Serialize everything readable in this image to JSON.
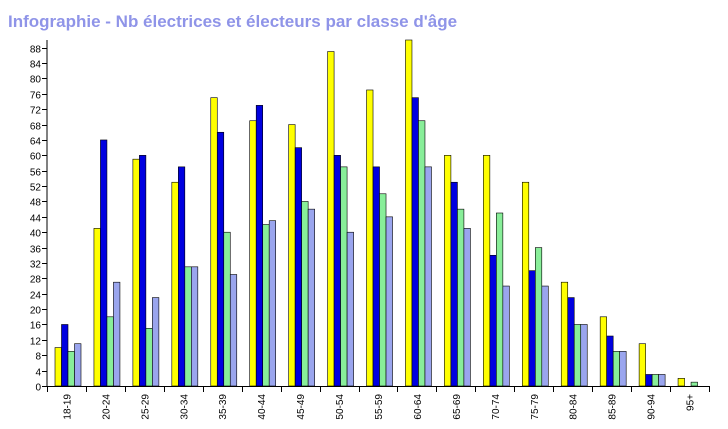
{
  "title": "Infographie - Nb électrices et électeurs par classe d'âge",
  "colors": {
    "title": "#8f94e8",
    "axis": "#000000",
    "series": [
      "#ffff00",
      "#0000e0",
      "#88ee99",
      "#9aa5ee"
    ]
  },
  "chart_data": {
    "type": "bar",
    "title": "Infographie - Nb électrices et électeurs par classe d'âge",
    "xlabel": "",
    "ylabel": "",
    "ylim": [
      0,
      90
    ],
    "yticks": [
      0,
      4,
      8,
      12,
      16,
      20,
      24,
      28,
      32,
      36,
      40,
      44,
      48,
      52,
      56,
      60,
      64,
      68,
      72,
      76,
      80,
      84,
      88
    ],
    "grid": false,
    "legend": "none",
    "categories": [
      "18-19",
      "20-24",
      "25-29",
      "30-34",
      "35-39",
      "40-44",
      "45-49",
      "50-54",
      "55-59",
      "60-64",
      "65-69",
      "70-74",
      "75-79",
      "80-84",
      "85-89",
      "90-94",
      "95+"
    ],
    "series": [
      {
        "values": [
          10,
          41,
          59,
          53,
          75,
          69,
          68,
          87,
          77,
          90,
          60,
          60,
          53,
          27,
          18,
          11,
          2
        ]
      },
      {
        "values": [
          16,
          64,
          60,
          57,
          66,
          73,
          62,
          60,
          57,
          75,
          53,
          34,
          30,
          23,
          13,
          3,
          0
        ]
      },
      {
        "values": [
          9,
          18,
          15,
          31,
          40,
          42,
          48,
          57,
          50,
          69,
          46,
          45,
          36,
          16,
          9,
          3,
          1
        ]
      },
      {
        "values": [
          11,
          27,
          23,
          31,
          29,
          43,
          46,
          40,
          44,
          57,
          41,
          26,
          26,
          16,
          9,
          3,
          0
        ]
      }
    ]
  }
}
